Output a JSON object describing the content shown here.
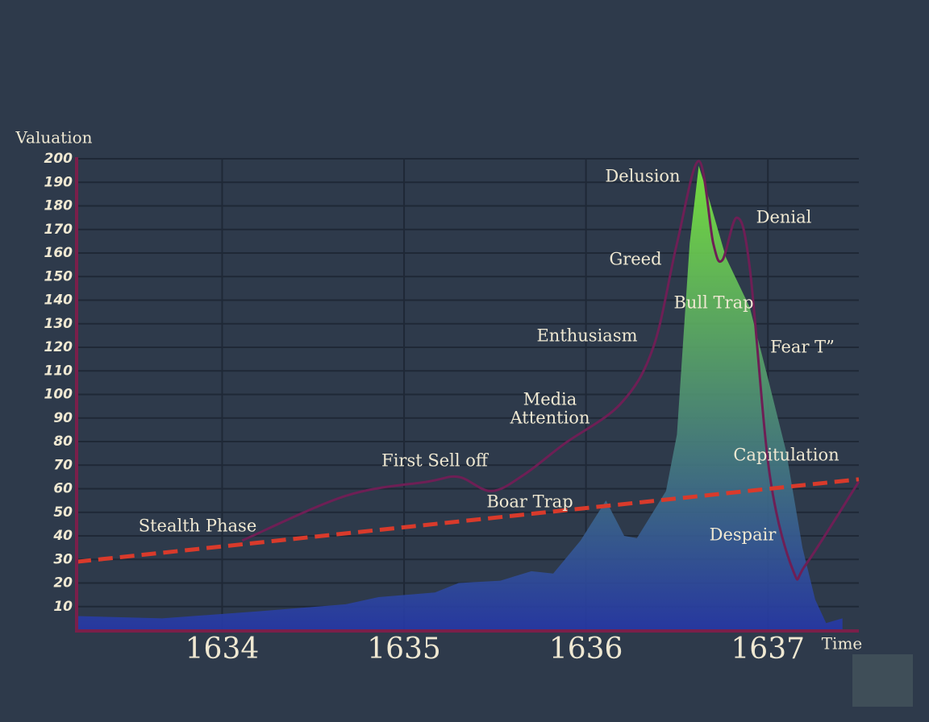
{
  "chart_data": {
    "type": "area",
    "y_label": "Valuation",
    "x_label": "Time",
    "xlim": [
      1633.2,
      1637.5
    ],
    "xticks": [
      1634,
      1635,
      1636,
      1637
    ],
    "ylim": [
      0,
      200
    ],
    "yticks": [
      10,
      20,
      30,
      40,
      50,
      60,
      70,
      80,
      90,
      100,
      110,
      120,
      130,
      140,
      150,
      160,
      170,
      180,
      190,
      200
    ],
    "grid": true,
    "series": [
      {
        "style": "area",
        "color": "#7cf03c",
        "color2": "#2638a8",
        "x": [
          1633.2,
          1633.67,
          1634.2,
          1634.68,
          1634.86,
          1635.17,
          1635.3,
          1635.53,
          1635.7,
          1635.82,
          1635.97,
          1636.11,
          1636.21,
          1636.28,
          1636.44,
          1636.5,
          1636.57,
          1636.62,
          1636.68,
          1636.77,
          1636.9,
          1636.99,
          1637.1,
          1637.19,
          1637.26,
          1637.32,
          1637.41
        ],
        "values": [
          6,
          5,
          8,
          11,
          14,
          16,
          20,
          21,
          25,
          24,
          38,
          55,
          40,
          39,
          59,
          83,
          164,
          197,
          182,
          158,
          137,
          110,
          76,
          35,
          13,
          3,
          5
        ]
      },
      {
        "style": "line",
        "color": "#6e1f55",
        "x": [
          1634.11,
          1634.68,
          1635.13,
          1635.3,
          1635.48,
          1635.66,
          1635.88,
          1636.19,
          1636.37,
          1636.5,
          1636.62,
          1636.7,
          1636.75,
          1636.83,
          1636.9,
          1637.01,
          1637.14,
          1637.21,
          1637.5
        ],
        "values": [
          38,
          57,
          63,
          65,
          59,
          66,
          79,
          96,
          120,
          164,
          199,
          164,
          157,
          175,
          154,
          66,
          25,
          28,
          63
        ]
      },
      {
        "style": "dashed",
        "color": "#d93a2b",
        "x": [
          1633.2,
          1637.5
        ],
        "values": [
          29,
          64
        ]
      }
    ],
    "annotations": [
      "Delusion",
      "Denial",
      "Greed",
      "Bull Trap",
      "Enthusiasm",
      "Fear T”",
      "Media",
      "Attention",
      "First Sell off",
      "Capitulation",
      "Boar Trap",
      "Stealth Phase",
      "Despair"
    ]
  }
}
